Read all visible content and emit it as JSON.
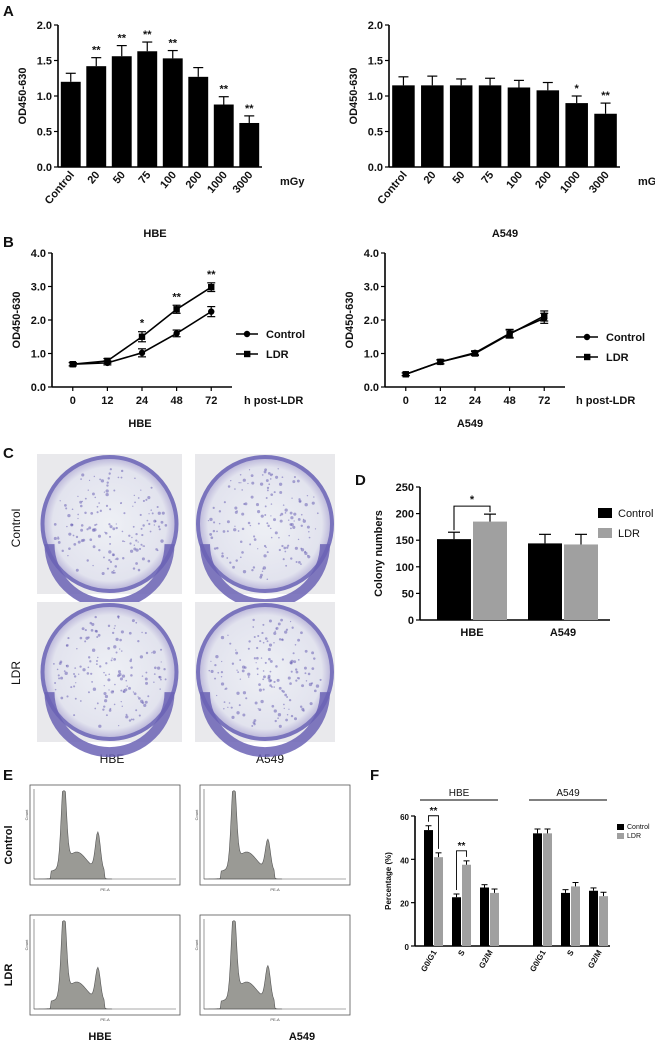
{
  "panel_labels": [
    "A",
    "B",
    "C",
    "D",
    "E",
    "F"
  ],
  "colors": {
    "black": "#000000",
    "gray": "#a0a0a0",
    "stain": "#6b63b5",
    "hist_fill": "#9a9a95"
  },
  "chart_data": [
    {
      "id": "A-HBE",
      "type": "bar",
      "panel": "A",
      "title": "HBE",
      "ylabel": "OD450-630",
      "xunit": "mGy",
      "ylim": [
        0,
        2.0
      ],
      "yticks": [
        0.0,
        0.5,
        1.0,
        1.5,
        2.0
      ],
      "categories": [
        "Control",
        "20",
        "50",
        "75",
        "100",
        "200",
        "1000",
        "3000"
      ],
      "values": [
        1.2,
        1.42,
        1.56,
        1.63,
        1.53,
        1.27,
        0.88,
        0.62
      ],
      "errors": [
        0.12,
        0.12,
        0.15,
        0.13,
        0.11,
        0.13,
        0.11,
        0.1
      ],
      "annotations": [
        "",
        "**",
        "**",
        "**",
        "**",
        "",
        "**",
        "**"
      ]
    },
    {
      "id": "A-A549",
      "type": "bar",
      "panel": "A",
      "title": "A549",
      "ylabel": "OD450-630",
      "xunit": "mGy",
      "ylim": [
        0,
        2.0
      ],
      "yticks": [
        0.0,
        0.5,
        1.0,
        1.5,
        2.0
      ],
      "categories": [
        "Control",
        "20",
        "50",
        "75",
        "100",
        "200",
        "1000",
        "3000"
      ],
      "values": [
        1.15,
        1.15,
        1.15,
        1.15,
        1.12,
        1.08,
        0.9,
        0.75
      ],
      "errors": [
        0.12,
        0.13,
        0.09,
        0.1,
        0.1,
        0.11,
        0.1,
        0.15
      ],
      "annotations": [
        "",
        "",
        "",
        "",
        "",
        "",
        "*",
        "**"
      ]
    },
    {
      "id": "B-HBE",
      "type": "line",
      "panel": "B",
      "title": "HBE",
      "ylabel": "OD450-630",
      "xlabel": "h post-LDR",
      "ylim": [
        0,
        4.0
      ],
      "yticks": [
        0.0,
        1.0,
        2.0,
        3.0,
        4.0
      ],
      "x": [
        "0",
        "12",
        "24",
        "48",
        "72"
      ],
      "series": [
        {
          "name": "Control",
          "marker": "circle",
          "values": [
            0.68,
            0.72,
            1.02,
            1.6,
            2.25
          ],
          "errors": [
            0.05,
            0.06,
            0.12,
            0.1,
            0.15
          ]
        },
        {
          "name": "LDR",
          "marker": "square",
          "values": [
            0.68,
            0.78,
            1.5,
            2.32,
            2.98
          ],
          "errors": [
            0.05,
            0.07,
            0.15,
            0.12,
            0.13
          ]
        }
      ],
      "annotations": [
        "",
        "",
        "*",
        "**",
        "**"
      ]
    },
    {
      "id": "B-A549",
      "type": "line",
      "panel": "B",
      "title": "A549",
      "ylabel": "OD450-630",
      "xlabel": "h post-LDR",
      "ylim": [
        0,
        4.0
      ],
      "yticks": [
        0.0,
        1.0,
        2.0,
        3.0,
        4.0
      ],
      "x": [
        "0",
        "12",
        "24",
        "48",
        "72"
      ],
      "series": [
        {
          "name": "Control",
          "marker": "circle",
          "values": [
            0.38,
            0.75,
            1.02,
            1.6,
            2.05
          ],
          "errors": [
            0.04,
            0.06,
            0.06,
            0.12,
            0.15
          ]
        },
        {
          "name": "LDR",
          "marker": "square",
          "values": [
            0.38,
            0.75,
            1.0,
            1.58,
            2.12
          ],
          "errors": [
            0.04,
            0.06,
            0.06,
            0.12,
            0.15
          ]
        }
      ],
      "annotations": [
        "",
        "",
        "",
        "",
        ""
      ]
    },
    {
      "id": "D",
      "type": "bar",
      "panel": "D",
      "ylabel": "Colony numbers",
      "ylim": [
        0,
        250
      ],
      "yticks": [
        0,
        50,
        100,
        150,
        200,
        250
      ],
      "categories": [
        "HBE",
        "A549"
      ],
      "series": [
        {
          "name": "Control",
          "values": [
            152,
            144
          ],
          "errors": [
            13,
            17
          ]
        },
        {
          "name": "LDR",
          "values": [
            185,
            142
          ],
          "errors": [
            14,
            19
          ]
        }
      ],
      "annotations": [
        "*",
        ""
      ]
    },
    {
      "id": "F",
      "type": "bar",
      "panel": "F",
      "ylabel": "Percentage (%)",
      "ylim": [
        0,
        60
      ],
      "yticks": [
        0,
        20,
        40,
        60
      ],
      "groups": [
        "HBE",
        "A549"
      ],
      "categories": [
        "G0/G1",
        "S",
        "G2/M"
      ],
      "series": [
        {
          "name": "Control",
          "values_HBE": [
            53.5,
            22.5,
            27
          ],
          "values_A549": [
            52,
            24.5,
            25.5
          ],
          "errors": [
            2,
            1.5,
            1.3
          ]
        },
        {
          "name": "LDR",
          "values_HBE": [
            41,
            37.5,
            24.5
          ],
          "values_A549": [
            52,
            27.5,
            23
          ],
          "errors": [
            2,
            1.8,
            1.8
          ]
        }
      ],
      "annotations": [
        "**",
        "**",
        ""
      ]
    }
  ],
  "photos": {
    "rows": [
      "Control",
      "LDR"
    ],
    "columns": [
      "HBE",
      "A549"
    ]
  },
  "histograms": {
    "rows": [
      "Control",
      "LDR"
    ],
    "columns": [
      "HBE",
      "A549"
    ],
    "axis_text": [
      "PE-A",
      "Count"
    ]
  }
}
